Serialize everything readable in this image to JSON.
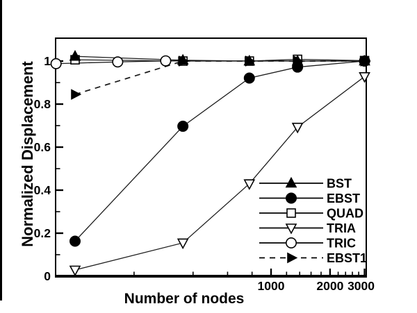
{
  "figure": {
    "background": "#ffffff",
    "ink_color": "#000000"
  },
  "chart_data": {
    "type": "line",
    "title": "",
    "xlabel": "Number of nodes",
    "ylabel": "Normalized Displacement",
    "x_scale": "log",
    "xlim": [
      79,
      3065
    ],
    "ylim": [
      0,
      1.106
    ],
    "grid": false,
    "legend_position": "inside-lower-right",
    "x_ticks_major": [
      1000,
      2000,
      3000
    ],
    "x_tick_labels": [
      "1000",
      "2000",
      "3000"
    ],
    "x_ticks_minor": [
      200,
      400,
      600,
      800,
      1200,
      1400,
      1600,
      1800,
      2200,
      2400,
      2600,
      2800
    ],
    "y_ticks_major": [
      0,
      0.2,
      0.4,
      0.6,
      0.8,
      1
    ],
    "y_tick_labels": [
      "0",
      "0.2",
      "0.4",
      "0.6",
      "0.8",
      "1"
    ],
    "y_ticks_minor": [
      0.1,
      0.3,
      0.5,
      0.7,
      0.9
    ],
    "series": [
      {
        "name": "BST",
        "marker": "triangle-up",
        "fill": "filled",
        "line": "solid",
        "points": [
          [
            100,
            1.022
          ],
          [
            355,
            1.004
          ],
          [
            775,
            1.0
          ],
          [
            1365,
            1.0
          ],
          [
            3000,
            1.0
          ]
        ]
      },
      {
        "name": "EBST",
        "marker": "circle",
        "fill": "filled",
        "line": "solid",
        "points": [
          [
            100,
            0.163
          ],
          [
            355,
            0.697
          ],
          [
            775,
            0.921
          ],
          [
            1365,
            0.972
          ],
          [
            3000,
            1.0
          ]
        ]
      },
      {
        "name": "QUAD",
        "marker": "square",
        "fill": "open",
        "line": "solid",
        "points": [
          [
            100,
            1.006
          ],
          [
            355,
            1.0
          ],
          [
            775,
            1.0
          ],
          [
            1365,
            1.008
          ],
          [
            3000,
            1.002
          ]
        ]
      },
      {
        "name": "TRIA",
        "marker": "triangle-down",
        "fill": "open",
        "line": "solid",
        "points": [
          [
            100,
            0.029
          ],
          [
            355,
            0.155
          ],
          [
            775,
            0.43
          ],
          [
            1365,
            0.693
          ],
          [
            3000,
            0.928
          ]
        ]
      },
      {
        "name": "TRIC",
        "marker": "circle",
        "fill": "open",
        "line": "solid",
        "points": [
          [
            80,
            0.988
          ],
          [
            165,
            0.996
          ],
          [
            290,
            1.001
          ],
          [
            3000,
            1.0
          ]
        ]
      },
      {
        "name": "EBST1",
        "marker": "triangle-right",
        "fill": "filled",
        "line": "dashed",
        "points": [
          [
            100,
            0.845
          ],
          [
            355,
            1.0
          ],
          [
            775,
            1.0
          ],
          [
            1365,
            1.0
          ],
          [
            3000,
            1.0
          ]
        ]
      }
    ]
  }
}
